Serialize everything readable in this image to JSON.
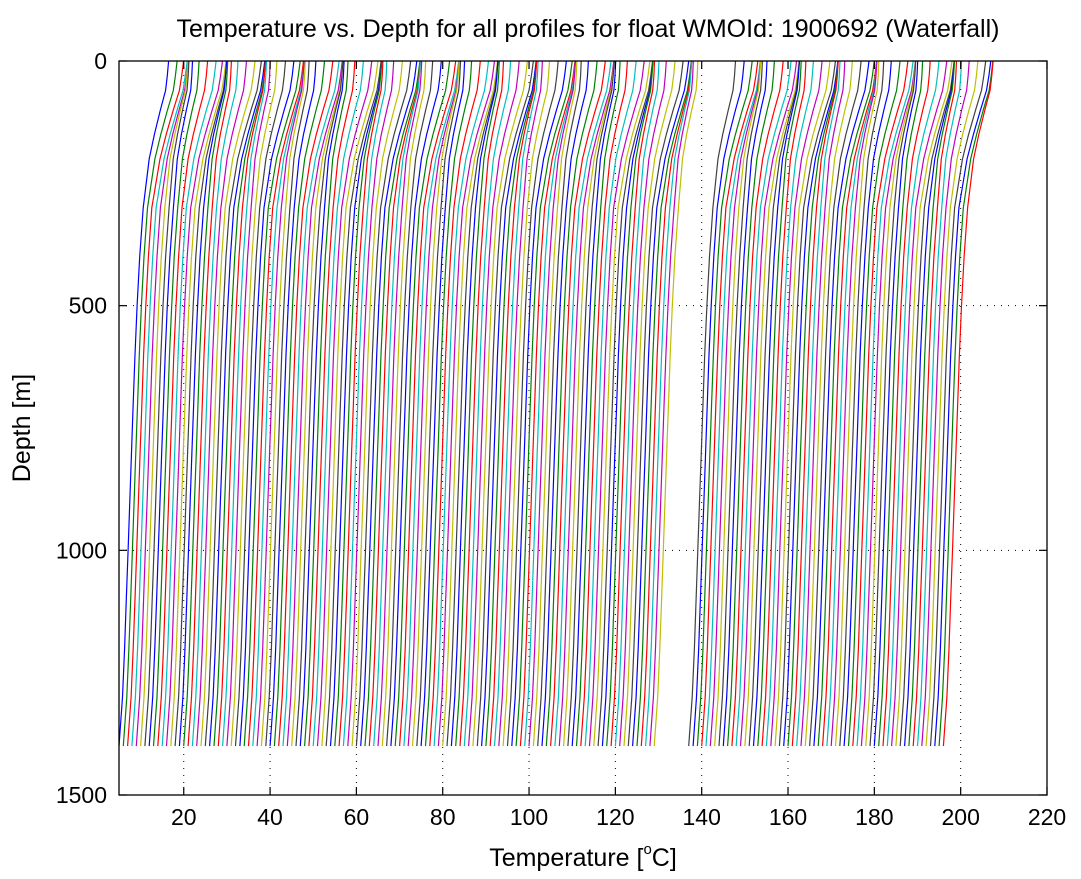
{
  "chart_data": {
    "type": "line",
    "title": "Temperature vs. Depth for all profiles for float WMOId: 1900692 (Waterfall)",
    "xlabel_main": "Temperature [",
    "xlabel_sup": "o",
    "xlabel_end": "C]",
    "ylabel": "Depth [m]",
    "xlim": [
      5,
      220
    ],
    "ylim": [
      0,
      1500
    ],
    "y_reversed": true,
    "grid": true,
    "x_ticks": [
      20,
      40,
      60,
      80,
      100,
      120,
      140,
      160,
      180,
      200,
      220
    ],
    "y_ticks": [
      0,
      500,
      1000,
      1500
    ],
    "colors": [
      "#0000ff",
      "#008000",
      "#ff0000",
      "#00bfbf",
      "#bf00bf",
      "#bfbf00",
      "#404040"
    ],
    "profile_count": 185,
    "offset_step_degC": 1,
    "gap_after_profile": 125,
    "gap_offset_degC": 7,
    "max_depth_m": 1400,
    "representative_profile": {
      "depth_m": [
        0,
        30,
        60,
        100,
        150,
        200,
        300,
        400,
        500,
        600,
        700,
        800,
        900,
        1000,
        1100,
        1200,
        1300,
        1400
      ],
      "temp_anomaly_degC": [
        11.5,
        11.2,
        10.8,
        9.6,
        8.2,
        7.0,
        5.6,
        4.8,
        4.2,
        3.7,
        3.3,
        2.9,
        2.5,
        2.1,
        1.7,
        1.3,
        0.8,
        0.0
      ]
    }
  }
}
